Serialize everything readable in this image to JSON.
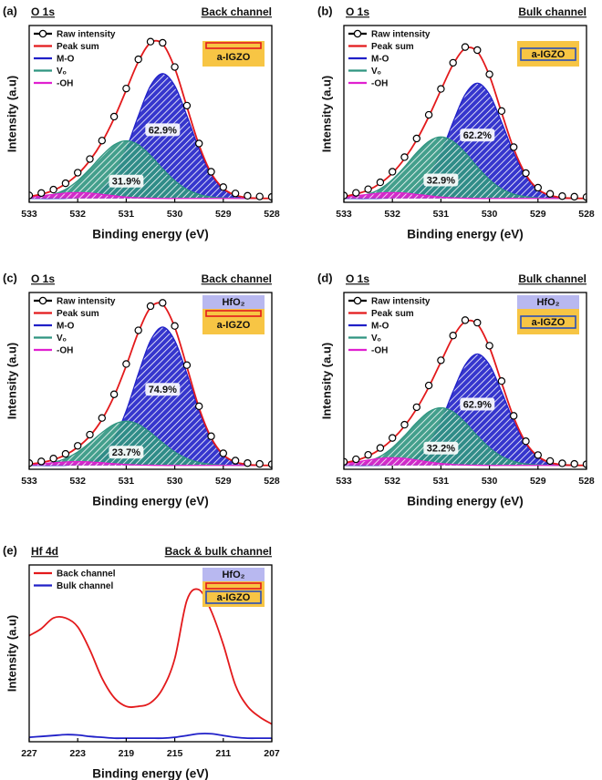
{
  "chart_data": [
    {
      "type": "line",
      "panel_label": "(a)",
      "title": "O 1s",
      "subtitle": "Back channel",
      "x_label": "Binding energy (eV)",
      "y_label": "Intensity (a.u)",
      "x": [
        533,
        532.75,
        532.5,
        532.25,
        532,
        531.75,
        531.5,
        531.25,
        531,
        530.75,
        530.5,
        530.25,
        530,
        529.75,
        529.5,
        529.25,
        529,
        528.75,
        528.5,
        528.25,
        528
      ],
      "xlim": [
        533,
        528
      ],
      "xticks": [
        533,
        532,
        531,
        530,
        529,
        528
      ],
      "ylim": [
        -2,
        90
      ],
      "series": [
        {
          "name": "M-O",
          "color": "#2020c8",
          "fill": "hatch",
          "values": [
            0,
            0,
            0,
            0.1,
            0.4,
            1.6,
            4.9,
            12.4,
            25.7,
            43.0,
            58.6,
            65,
            58.6,
            43.0,
            25.7,
            12.4,
            4.9,
            1.6,
            0.4,
            0.1,
            0
          ],
          "share": 62.9,
          "share_label": "62.9%"
        },
        {
          "name": "Vₒ",
          "color": "#2f9580",
          "fill": "hatch",
          "values": [
            0.3,
            0.8,
            2.1,
            4.7,
            9.2,
            15.4,
            22.3,
            27.9,
            30,
            27.9,
            22.3,
            15.4,
            9.2,
            4.7,
            2.1,
            0.8,
            0.3,
            0.1,
            0,
            0,
            0
          ],
          "share": 31.9,
          "share_label": "31.9%"
        },
        {
          "name": "-OH",
          "color": "#e020d0",
          "fill": "hatch",
          "values": [
            0.7,
            1.4,
            2.1,
            2.8,
            3,
            2.8,
            2.1,
            1.4,
            0.7,
            0.3,
            0.1,
            0,
            0,
            0,
            0,
            0,
            0,
            0,
            0,
            0,
            0
          ]
        },
        {
          "name": "Peak sum",
          "color": "#e31a1c",
          "values": [
            1.0,
            2.2,
            4.2,
            7.6,
            12.6,
            19.8,
            29.3,
            41.7,
            56.4,
            71.2,
            81.0,
            80.4,
            67.8,
            47.7,
            27.8,
            13.2,
            5.2,
            1.7,
            0.4,
            0.1,
            0
          ]
        },
        {
          "name": "Raw intensity",
          "color": "#000000",
          "marker": "circle",
          "values": [
            1.6,
            2.8,
            4.6,
            7.9,
            13.4,
            20.5,
            30.1,
            42.6,
            57.2,
            72.4,
            81.6,
            81.0,
            68.4,
            48.3,
            28.6,
            13.9,
            5.9,
            2.6,
            1.4,
            1.0,
            0.8
          ]
        }
      ],
      "legend_order": [
        4,
        3,
        0,
        1,
        2
      ],
      "inset": {
        "layers": [
          "a-IGZO"
        ],
        "probe": "back"
      }
    },
    {
      "type": "line",
      "panel_label": "(b)",
      "title": "O 1s",
      "subtitle": "Bulk channel",
      "x_label": "Binding energy (eV)",
      "y_label": "Intensity (a.u)",
      "x": [
        533,
        532.75,
        532.5,
        532.25,
        532,
        531.75,
        531.5,
        531.25,
        531,
        530.75,
        530.5,
        530.25,
        530,
        529.75,
        529.5,
        529.25,
        529,
        528.75,
        528.5,
        528.25,
        528
      ],
      "xlim": [
        533,
        528
      ],
      "xticks": [
        533,
        532,
        531,
        530,
        529,
        528
      ],
      "ylim": [
        -2,
        90
      ],
      "series": [
        {
          "name": "M-O",
          "color": "#2020c8",
          "fill": "hatch",
          "values": [
            0,
            0,
            0,
            0.1,
            0.4,
            1.5,
            4.5,
            11.5,
            23.7,
            39.7,
            54.1,
            60,
            54.1,
            39.7,
            23.7,
            11.5,
            4.5,
            1.5,
            0.4,
            0.1,
            0
          ],
          "share": 62.2,
          "share_label": "62.2%"
        },
        {
          "name": "Vₒ",
          "color": "#2f9580",
          "fill": "hatch",
          "values": [
            0.3,
            0.9,
            2.2,
            5.0,
            9.8,
            16.4,
            23.8,
            29.7,
            32,
            29.7,
            23.8,
            16.4,
            9.8,
            5.0,
            2.2,
            0.9,
            0.3,
            0.1,
            0,
            0,
            0
          ],
          "share": 32.9,
          "share_label": "32.9%"
        },
        {
          "name": "-OH",
          "color": "#e020d0",
          "fill": "hatch",
          "values": [
            0.7,
            1.4,
            2.1,
            2.8,
            3,
            2.8,
            2.1,
            1.4,
            0.7,
            0.3,
            0.1,
            0,
            0,
            0,
            0,
            0,
            0,
            0,
            0,
            0,
            0
          ]
        },
        {
          "name": "Peak sum",
          "color": "#e31a1c",
          "values": [
            1.0,
            2.3,
            4.3,
            7.9,
            13.2,
            20.7,
            30.4,
            42.6,
            56.4,
            69.7,
            78.0,
            76.4,
            63.9,
            44.7,
            25.9,
            12.4,
            4.8,
            1.6,
            0.4,
            0.1,
            0
          ]
        },
        {
          "name": "Raw intensity",
          "color": "#000000",
          "marker": "circle",
          "values": [
            1.5,
            2.9,
            4.8,
            8.4,
            13.9,
            21.5,
            31.2,
            43.5,
            57.0,
            70.6,
            78.8,
            77.2,
            64.6,
            45.5,
            26.7,
            13.2,
            5.6,
            2.4,
            1.2,
            0.9,
            0.7
          ]
        }
      ],
      "legend_order": [
        4,
        3,
        0,
        1,
        2
      ],
      "inset": {
        "layers": [
          "a-IGZO"
        ],
        "probe": "bulk"
      }
    },
    {
      "type": "line",
      "panel_label": "(c)",
      "title": "O 1s",
      "subtitle": "Back channel",
      "x_label": "Binding energy (eV)",
      "y_label": "Intensity (a.u)",
      "x": [
        533,
        532.75,
        532.5,
        532.25,
        532,
        531.75,
        531.5,
        531.25,
        531,
        530.75,
        530.5,
        530.25,
        530,
        529.75,
        529.5,
        529.25,
        529,
        528.75,
        528.5,
        528.25,
        528
      ],
      "xlim": [
        533,
        528
      ],
      "xticks": [
        533,
        532,
        531,
        530,
        529,
        528
      ],
      "ylim": [
        -2,
        90
      ],
      "series": [
        {
          "name": "M-O",
          "color": "#2020c8",
          "fill": "hatch",
          "values": [
            0,
            0,
            0,
            0.1,
            0.5,
            1.7,
            5.4,
            13.8,
            28.4,
            47.7,
            64.9,
            72,
            64.9,
            47.7,
            28.4,
            13.8,
            5.4,
            1.7,
            0.5,
            0.1,
            0
          ],
          "share": 74.9,
          "share_label": "74.9%"
        },
        {
          "name": "Vₒ",
          "color": "#2f9580",
          "fill": "hatch",
          "values": [
            0.2,
            0.6,
            1.6,
            3.6,
            7.0,
            11.8,
            17.1,
            21.4,
            23,
            21.4,
            17.1,
            11.8,
            7.0,
            3.6,
            1.6,
            0.6,
            0.2,
            0.1,
            0,
            0,
            0
          ],
          "share": 23.7,
          "share_label": "23.7%"
        },
        {
          "name": "-OH",
          "color": "#e020d0",
          "fill": "hatch",
          "values": [
            0.5,
            0.9,
            1.4,
            1.8,
            2,
            1.8,
            1.4,
            0.9,
            0.5,
            0.2,
            0.1,
            0,
            0,
            0,
            0,
            0,
            0,
            0,
            0,
            0,
            0
          ]
        },
        {
          "name": "Peak sum",
          "color": "#e31a1c",
          "values": [
            0.7,
            1.5,
            3.0,
            5.5,
            9.5,
            15.3,
            23.9,
            36.1,
            51.9,
            69.3,
            82.1,
            83.8,
            71.9,
            51.3,
            30.0,
            14.4,
            5.6,
            1.8,
            0.5,
            0.1,
            0
          ]
        },
        {
          "name": "Raw intensity",
          "color": "#000000",
          "marker": "circle",
          "values": [
            1.2,
            2.1,
            3.6,
            6.0,
            10.2,
            16.0,
            24.7,
            37.0,
            52.8,
            70.3,
            82.9,
            84.6,
            72.6,
            52.2,
            30.8,
            15.2,
            6.3,
            2.5,
            1.2,
            0.8,
            0.6
          ]
        }
      ],
      "legend_order": [
        4,
        3,
        0,
        1,
        2
      ],
      "inset": {
        "layers": [
          "HfO₂",
          "a-IGZO"
        ],
        "probe": "back"
      }
    },
    {
      "type": "line",
      "panel_label": "(d)",
      "title": "O 1s",
      "subtitle": "Bulk channel",
      "x_label": "Binding energy (eV)",
      "y_label": "Intensity (a.u)",
      "x": [
        533,
        532.75,
        532.5,
        532.25,
        532,
        531.75,
        531.5,
        531.25,
        531,
        530.75,
        530.5,
        530.25,
        530,
        529.75,
        529.5,
        529.25,
        529,
        528.75,
        528.5,
        528.25,
        528
      ],
      "xlim": [
        533,
        528
      ],
      "xticks": [
        533,
        532,
        531,
        530,
        529,
        528
      ],
      "ylim": [
        -2,
        90
      ],
      "series": [
        {
          "name": "M-O",
          "color": "#2020c8",
          "fill": "hatch",
          "values": [
            0,
            0,
            0,
            0.1,
            0.4,
            1.4,
            4.4,
            11.1,
            22.9,
            38.4,
            52.3,
            58,
            52.3,
            38.4,
            22.9,
            11.1,
            4.4,
            1.4,
            0.4,
            0.1,
            0
          ],
          "share": 62.9,
          "share_label": "62.9%"
        },
        {
          "name": "Vₒ",
          "color": "#2f9580",
          "fill": "hatch",
          "values": [
            0.3,
            0.8,
            2.1,
            4.7,
            9.2,
            15.4,
            22.3,
            27.9,
            30,
            27.9,
            22.3,
            15.4,
            9.2,
            4.7,
            2.1,
            0.8,
            0.3,
            0.1,
            0,
            0,
            0
          ],
          "share": 32.2,
          "share_label": "32.2%"
        },
        {
          "name": "-OH",
          "color": "#e020d0",
          "fill": "hatch",
          "values": [
            1.0,
            1.8,
            2.8,
            3.7,
            4,
            3.7,
            2.8,
            1.8,
            1.0,
            0.5,
            0.2,
            0.1,
            0,
            0,
            0,
            0,
            0,
            0,
            0,
            0,
            0
          ]
        },
        {
          "name": "Peak sum",
          "color": "#e31a1c",
          "values": [
            1.3,
            2.6,
            4.9,
            8.5,
            13.6,
            20.5,
            29.5,
            40.8,
            53.9,
            66.8,
            74.8,
            73.5,
            61.5,
            43.1,
            25.0,
            11.9,
            4.7,
            1.5,
            0.4,
            0.1,
            0
          ]
        },
        {
          "name": "Raw intensity",
          "color": "#000000",
          "marker": "circle",
          "values": [
            1.9,
            3.2,
            5.5,
            9.1,
            14.3,
            21.2,
            30.3,
            41.6,
            54.7,
            67.6,
            75.6,
            74.3,
            62.3,
            43.9,
            25.8,
            12.6,
            5.4,
            2.3,
            1.1,
            0.8,
            0.6
          ]
        }
      ],
      "legend_order": [
        4,
        3,
        0,
        1,
        2
      ],
      "inset": {
        "layers": [
          "HfO₂",
          "a-IGZO"
        ],
        "probe": "bulk"
      }
    },
    {
      "type": "line",
      "panel_label": "(e)",
      "title": "Hf 4d",
      "subtitle": "Back & bulk channel",
      "x_label": "Binding energy (eV)",
      "y_label": "Intensity (a.u)",
      "x": [
        227,
        226,
        225,
        224,
        223,
        222,
        221,
        220,
        219,
        218,
        217,
        216,
        215,
        214,
        213,
        212,
        211,
        210,
        209,
        208,
        207
      ],
      "xlim": [
        227,
        207
      ],
      "xticks": [
        227,
        223,
        219,
        215,
        211,
        207
      ],
      "ylim": [
        0,
        100
      ],
      "series": [
        {
          "name": "Back channel",
          "color": "#e31a1c",
          "values": [
            60,
            64,
            70,
            70,
            65,
            52,
            36,
            25,
            20,
            20,
            22,
            30,
            47,
            80,
            86,
            74,
            55,
            32,
            20,
            14,
            10
          ]
        },
        {
          "name": "Bulk channel",
          "color": "#2020c8",
          "values": [
            2.5,
            3,
            3.5,
            4,
            3.8,
            3,
            2.5,
            2,
            2,
            2,
            2,
            2,
            2.5,
            3.5,
            4.5,
            4.5,
            3.5,
            2.5,
            2,
            2,
            2
          ]
        }
      ],
      "legend_order": [
        0,
        1
      ],
      "inset": {
        "layers": [
          "HfO₂",
          "a-IGZO"
        ],
        "probe": "both"
      }
    }
  ]
}
